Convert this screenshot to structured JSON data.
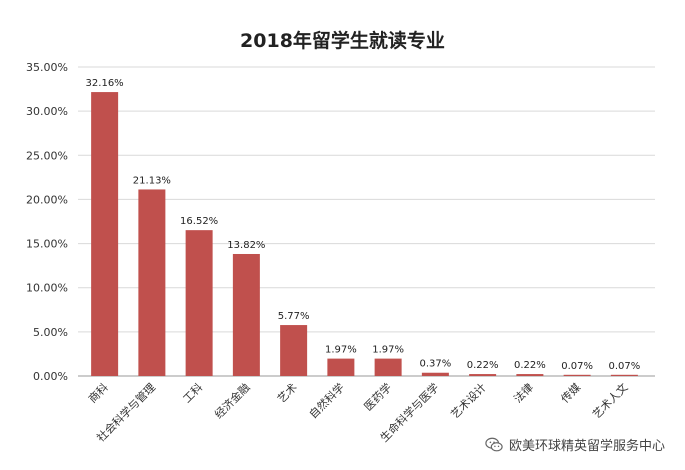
{
  "chart_data": {
    "type": "bar",
    "title": "2018年留学生就读专业",
    "xlabel": "",
    "ylabel": "",
    "ylim": [
      0,
      35
    ],
    "y_tick_labels": [
      "0.00%",
      "5.00%",
      "10.00%",
      "15.00%",
      "20.00%",
      "25.00%",
      "30.00%",
      "35.00%"
    ],
    "categories": [
      "商科",
      "社会科学与管理",
      "工科",
      "经济金融",
      "艺术",
      "自然科学",
      "医药学",
      "生命科学与医学",
      "艺术设计",
      "法律",
      "传媒",
      "艺术人文"
    ],
    "values": [
      32.16,
      21.13,
      16.52,
      13.82,
      5.77,
      1.97,
      1.97,
      0.37,
      0.22,
      0.22,
      0.07,
      0.07
    ],
    "data_labels": [
      "32.16%",
      "21.13%",
      "16.52%",
      "13.82%",
      "5.77%",
      "1.97%",
      "1.97%",
      "0.37%",
      "0.22%",
      "0.22%",
      "0.07%",
      "0.07%"
    ],
    "bar_color": "#c0504d",
    "grid": true,
    "legend": "none"
  },
  "watermark": {
    "text": "欧美环球精英留学服务中心",
    "icon": "wechat-icon"
  }
}
